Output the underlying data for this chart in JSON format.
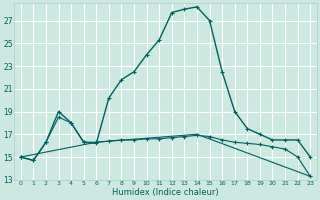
{
  "xlabel": "Humidex (Indice chaleur)",
  "bg_color": "#cce8e0",
  "grid_color": "#ffffff",
  "line_color": "#006060",
  "xlim": [
    -0.5,
    23.5
  ],
  "ylim": [
    13,
    28.5
  ],
  "xticks": [
    0,
    1,
    2,
    3,
    4,
    5,
    6,
    7,
    8,
    9,
    10,
    11,
    12,
    13,
    14,
    15,
    16,
    17,
    18,
    19,
    20,
    21,
    22,
    23
  ],
  "yticks": [
    13,
    15,
    17,
    19,
    21,
    23,
    25,
    27
  ],
  "curve1_x": [
    0,
    1,
    2,
    3,
    4,
    5,
    6,
    7,
    8,
    9,
    10,
    11,
    12,
    13,
    14,
    15,
    16,
    17,
    18,
    19,
    20,
    21,
    22,
    23
  ],
  "curve1_y": [
    15.0,
    14.7,
    16.3,
    19.0,
    18.0,
    16.3,
    16.2,
    20.2,
    21.8,
    22.5,
    24.0,
    25.3,
    27.7,
    28.0,
    28.2,
    27.0,
    22.5,
    19.0,
    17.5,
    17.0,
    16.5,
    16.5,
    16.5,
    15.0
  ],
  "curve2_x": [
    0,
    1,
    2,
    3,
    4,
    5,
    6,
    7,
    8,
    9,
    10,
    11,
    12,
    13,
    14,
    15,
    16,
    17,
    18,
    19,
    20,
    21,
    22,
    23
  ],
  "curve2_y": [
    15.0,
    14.7,
    16.3,
    18.5,
    18.0,
    16.3,
    16.3,
    16.4,
    16.5,
    16.5,
    16.6,
    16.6,
    16.7,
    16.8,
    16.9,
    16.8,
    16.5,
    16.3,
    16.2,
    16.1,
    15.9,
    15.7,
    15.0,
    13.3
  ],
  "curve3_x": [
    0,
    6,
    14,
    23
  ],
  "curve3_y": [
    15.0,
    16.3,
    17.0,
    13.3
  ]
}
